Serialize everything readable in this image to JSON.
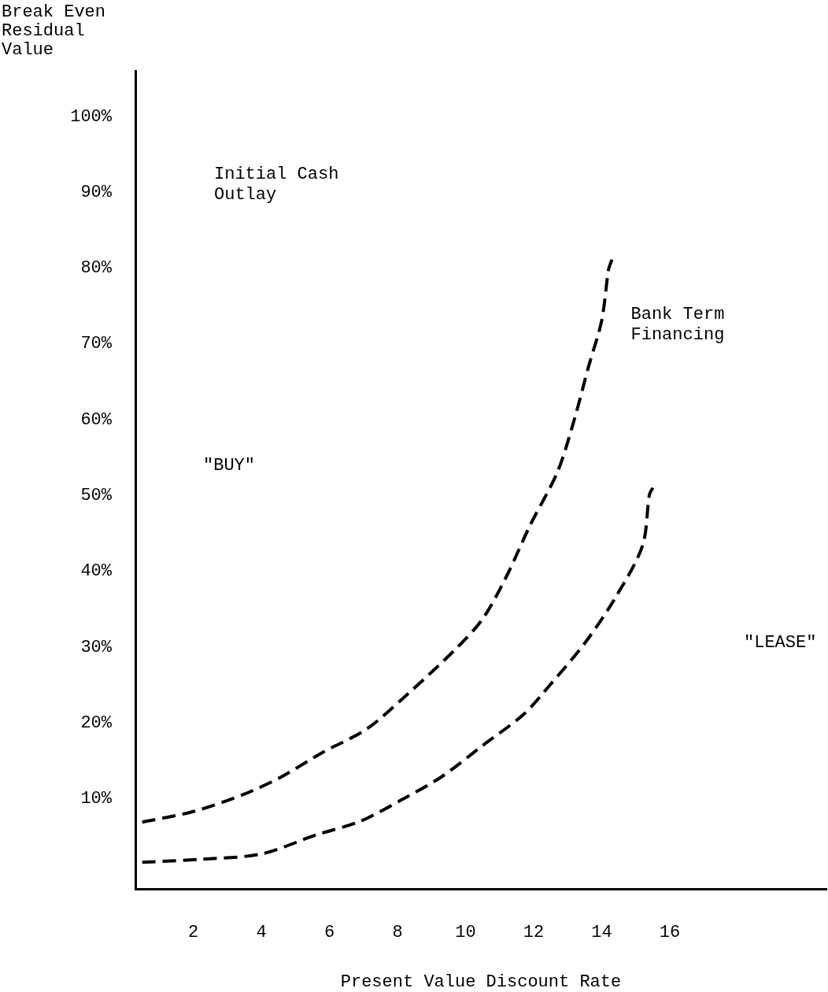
{
  "chart_data": {
    "type": "line",
    "xlabel": "Present Value Discount Rate",
    "ylabel": "Break Even\nResidual\nValue",
    "xlim": [
      0.3,
      20.6
    ],
    "xticks": [
      2,
      4,
      6,
      8,
      10,
      12,
      14,
      16
    ],
    "ylim": [
      -1.9,
      106
    ],
    "yticks": [
      {
        "value": 10,
        "label": "10%"
      },
      {
        "value": 20,
        "label": "20%"
      },
      {
        "value": 30,
        "label": "30%"
      },
      {
        "value": 40,
        "label": "40%"
      },
      {
        "value": 50,
        "label": "50%"
      },
      {
        "value": 60,
        "label": "60%"
      },
      {
        "value": 70,
        "label": "70%"
      },
      {
        "value": 80,
        "label": "80%"
      },
      {
        "value": 90,
        "label": "90%"
      },
      {
        "value": 100,
        "label": "100%"
      }
    ],
    "grid": false,
    "legend": false,
    "marker": "none",
    "line_style": "dashed",
    "series": [
      {
        "name": "Bank Term Financing",
        "color": "#000000",
        "x": [
          0.5,
          2.0,
          3.5,
          4.6,
          5.8,
          7.1,
          8.3,
          9.7,
          10.5,
          11.2,
          11.9,
          12.7,
          13.2,
          13.6,
          14.0,
          14.2,
          14.3
        ],
        "values": [
          6.9,
          8.3,
          10.6,
          12.9,
          16.1,
          19.2,
          23.8,
          29.7,
          33.7,
          39.3,
          46.1,
          53.1,
          60.1,
          66.8,
          73.1,
          79.8,
          81.1
        ]
      },
      {
        "color": "#000000",
        "x": [
          0.5,
          2.2,
          4.0,
          5.6,
          6.9,
          8.1,
          9.3,
          10.5,
          11.7,
          12.5,
          13.5,
          14.4,
          15.2,
          15.4,
          15.5
        ],
        "values": [
          1.6,
          2.0,
          2.7,
          5.2,
          7.0,
          9.8,
          12.9,
          17.0,
          21.1,
          25.1,
          30.5,
          36.5,
          43.4,
          50.1,
          51.0
        ]
      }
    ],
    "annotations": [
      "Initial Cash\nOutlay",
      "\"BUY\"",
      "\"LEASE\""
    ]
  }
}
